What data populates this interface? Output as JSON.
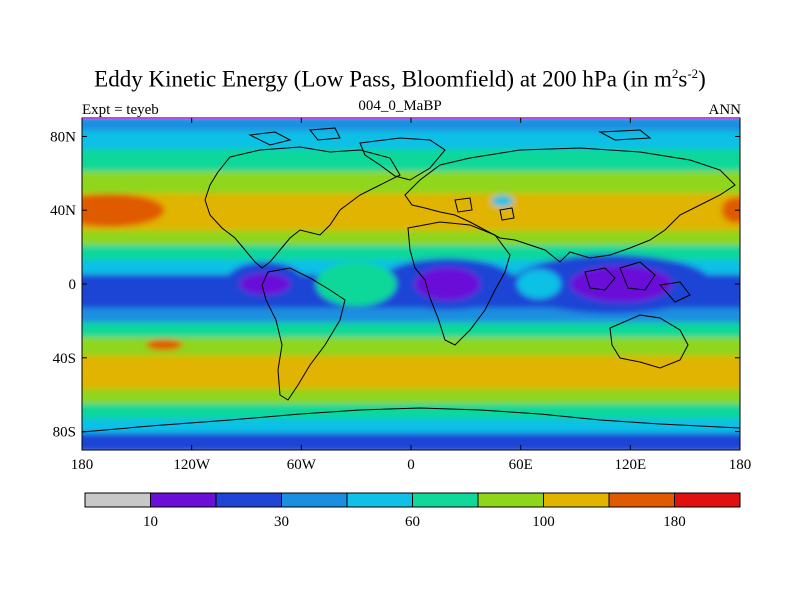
{
  "chart_data": {
    "type": "heatmap",
    "title_main": "Eddy Kinetic Energy (Low Pass, Bloomfield) at 200 hPa (in m",
    "title_sup1": "2",
    "title_mid": "s",
    "title_sup2": "-2",
    "title_end": ")",
    "left_label": "Expt = teyeb",
    "center_label": "004_0_MaBP",
    "right_label": "ANN",
    "xlim": [
      -180,
      180
    ],
    "ylim": [
      -90,
      90
    ],
    "x_ticks": [
      {
        "value": -180,
        "label": "180"
      },
      {
        "value": -120,
        "label": "120W"
      },
      {
        "value": -60,
        "label": "60W"
      },
      {
        "value": 0,
        "label": "0"
      },
      {
        "value": 60,
        "label": "60E"
      },
      {
        "value": 120,
        "label": "120E"
      },
      {
        "value": 180,
        "label": "180"
      }
    ],
    "y_ticks": [
      {
        "value": 80,
        "label": "80N"
      },
      {
        "value": 40,
        "label": "40N"
      },
      {
        "value": 0,
        "label": "0"
      },
      {
        "value": -40,
        "label": "40S"
      },
      {
        "value": -80,
        "label": "80S"
      }
    ],
    "colorbar": {
      "colors": [
        "#c8c8c8",
        "#6a0fd8",
        "#1f44d6",
        "#1a8fe0",
        "#10c0e6",
        "#10d89a",
        "#8fd61a",
        "#e0b400",
        "#e05a00",
        "#e01010"
      ],
      "labels": [
        {
          "after_box": 1,
          "label": "10"
        },
        {
          "after_box": 3,
          "label": "30"
        },
        {
          "after_box": 5,
          "label": "60"
        },
        {
          "after_box": 7,
          "label": "100"
        },
        {
          "after_box": 9,
          "label": "180"
        }
      ]
    },
    "field_bands": [
      {
        "lat": 90,
        "level": 3
      },
      {
        "lat": 82,
        "level": 4
      },
      {
        "lat": 72,
        "level": 5
      },
      {
        "lat": 60,
        "level": 6
      },
      {
        "lat": 48,
        "level": 7
      },
      {
        "lat": 38,
        "level": 7
      },
      {
        "lat": 28,
        "level": 6
      },
      {
        "lat": 20,
        "level": 5
      },
      {
        "lat": 12,
        "level": 4
      },
      {
        "lat": 4,
        "level": 2
      },
      {
        "lat": -6,
        "level": 2
      },
      {
        "lat": -14,
        "level": 3
      },
      {
        "lat": -22,
        "level": 5
      },
      {
        "lat": -30,
        "level": 6
      },
      {
        "lat": -40,
        "level": 7
      },
      {
        "lat": -50,
        "level": 7
      },
      {
        "lat": -58,
        "level": 6
      },
      {
        "lat": -66,
        "level": 5
      },
      {
        "lat": -74,
        "level": 4
      },
      {
        "lat": -82,
        "level": 2
      },
      {
        "lat": -90,
        "level": 2
      }
    ],
    "field_blobs": [
      {
        "lon": -165,
        "lat": 40,
        "rlon": 30,
        "rlat": 9,
        "level": 8
      },
      {
        "lon": 178,
        "lat": 40,
        "rlon": 8,
        "rlat": 7,
        "level": 8
      },
      {
        "lon": -135,
        "lat": -33,
        "rlon": 10,
        "rlat": 3,
        "level": 8
      },
      {
        "lon": -80,
        "lat": 0,
        "rlon": 22,
        "rlat": 12,
        "level": 2
      },
      {
        "lon": -80,
        "lat": 0,
        "rlon": 14,
        "rlat": 6,
        "level": 1
      },
      {
        "lon": 20,
        "lat": 0,
        "rlon": 38,
        "rlat": 14,
        "level": 2
      },
      {
        "lon": 20,
        "lat": 0,
        "rlon": 18,
        "rlat": 9,
        "level": 1
      },
      {
        "lon": 110,
        "lat": 0,
        "rlon": 55,
        "rlat": 16,
        "level": 2
      },
      {
        "lon": 115,
        "lat": 0,
        "rlon": 28,
        "rlat": 10,
        "level": 1
      },
      {
        "lon": -178,
        "lat": -5,
        "rlon": 8,
        "rlat": 6,
        "level": 2
      },
      {
        "lon": 50,
        "lat": 45,
        "rlon": 6,
        "rlat": 3,
        "level": 4
      },
      {
        "lon": -30,
        "lat": 0,
        "rlon": 22,
        "rlat": 12,
        "level": 5
      },
      {
        "lon": 70,
        "lat": 0,
        "rlon": 12,
        "rlat": 8,
        "level": 4
      }
    ]
  }
}
